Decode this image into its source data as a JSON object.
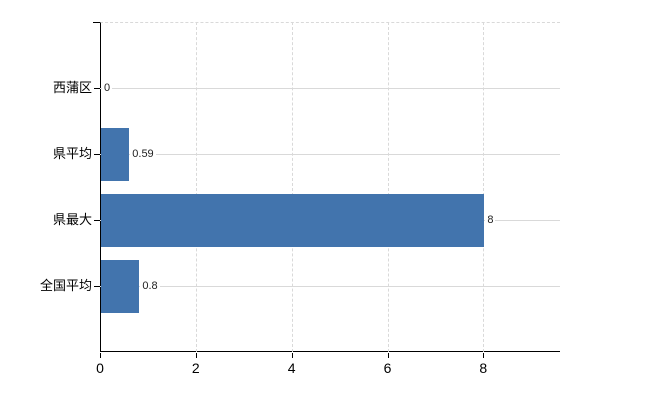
{
  "chart_data": {
    "type": "bar",
    "orientation": "horizontal",
    "title": "",
    "categories": [
      "西蒲区",
      "県平均",
      "県最大",
      "全国平均"
    ],
    "values": [
      0,
      0.59,
      8,
      0.8
    ],
    "value_labels": [
      "0",
      "0.59",
      "8",
      "0.8"
    ],
    "x_ticks": [
      0,
      2,
      4,
      6,
      8
    ],
    "x_tick_labels": [
      "0",
      "2",
      "4",
      "6",
      "8"
    ],
    "xlim": [
      0,
      9.6
    ],
    "ylabel": "",
    "xlabel": "",
    "legend_position": "none",
    "grid": {
      "vertical": "dashed",
      "horizontal": "solid",
      "top_border": "dashed"
    },
    "colors": {
      "bar": "#4274ad",
      "gridline": "#d9d9d9",
      "axis": "#000000",
      "tick_label": "#000000",
      "value_label": "#222222",
      "background": "#ffffff"
    }
  }
}
